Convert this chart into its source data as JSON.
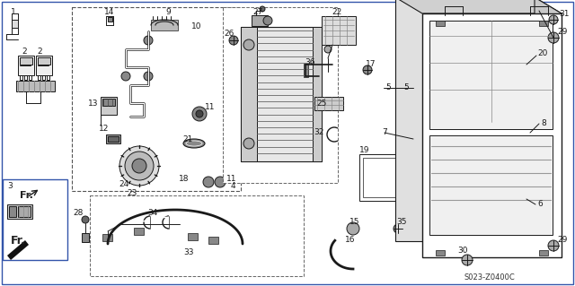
{
  "bg_color": "#ffffff",
  "line_color": "#1a1a1a",
  "gray_color": "#888888",
  "dark_gray": "#444444",
  "light_gray": "#cccccc",
  "diagram_code": "S023-Z0400C",
  "figsize": [
    6.4,
    3.19
  ],
  "dpi": 100
}
